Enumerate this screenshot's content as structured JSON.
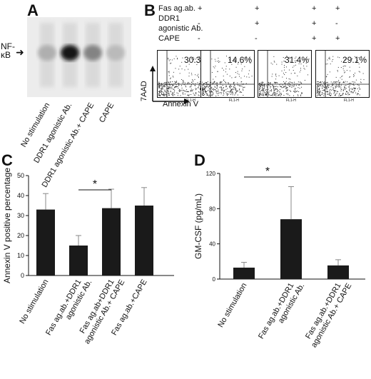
{
  "panels": {
    "A": {
      "letter": "A",
      "band_label": "NF-\nκB",
      "band_label_line1": "NF-",
      "band_label_line2": "κB",
      "lanes": [
        "No stimulation",
        "DDR1 agonistic Ab.",
        "DDR1 agonistic Ab.+ CAPE",
        "CAPE"
      ],
      "lane_intensity": [
        0.25,
        0.95,
        0.45,
        0.2
      ]
    },
    "B": {
      "letter": "B",
      "row_labels": [
        "Fas ag.ab.",
        "DDR1",
        "agonistic Ab.",
        "CAPE"
      ],
      "columns": [
        {
          "fas": "+",
          "ddr1": "-",
          "cape": "-",
          "percent": "30.3%"
        },
        {
          "fas": "+",
          "ddr1": "+",
          "cape": "-",
          "percent": "14.6%"
        },
        {
          "fas": "+",
          "ddr1": "+",
          "cape": "+",
          "percent": "31.4%"
        },
        {
          "fas": "+",
          "ddr1": "-",
          "cape": "+",
          "percent": "29.1%"
        }
      ],
      "y_axis_label": "7AAD",
      "x_axis_label": "Annexin V",
      "plot_x_label": "FL1-H"
    },
    "C": {
      "letter": "C",
      "significance": "*"
    },
    "D": {
      "letter": "D",
      "significance": "*"
    }
  },
  "chart_data": [
    {
      "type": "bar",
      "title": "",
      "ylabel": "Annexin V positive percentage",
      "xlabel": "",
      "categories": [
        "No stimulation",
        "Fas ag.ab.+DDR1 agonistic Ab.",
        "Fas ag.ab+DDR1 agonistic Ab.+ CAPE",
        "Fas ag.ab.+CAPE"
      ],
      "values": [
        33,
        15,
        33.7,
        35
      ],
      "errors": [
        8,
        5,
        9.5,
        9
      ],
      "ylim": [
        0,
        50
      ],
      "yticks": [
        0,
        10,
        20,
        30,
        40,
        50
      ],
      "bar_color": "#1a1a1a"
    },
    {
      "type": "bar",
      "title": "",
      "ylabel": "GM-CSF (pg/mL)",
      "xlabel": "",
      "categories": [
        "No stimulation",
        "Fas ag.ab.+DDR1 agonistic Ab.",
        "Fas ag.ab.+DDR1 agonistic Ab.+ CAPE"
      ],
      "values": [
        13,
        68,
        15.5
      ],
      "errors": [
        6,
        37,
        6.5
      ],
      "ylim": [
        0,
        120
      ],
      "yticks": [
        0,
        40,
        80,
        120
      ],
      "bar_color": "#1a1a1a"
    }
  ]
}
